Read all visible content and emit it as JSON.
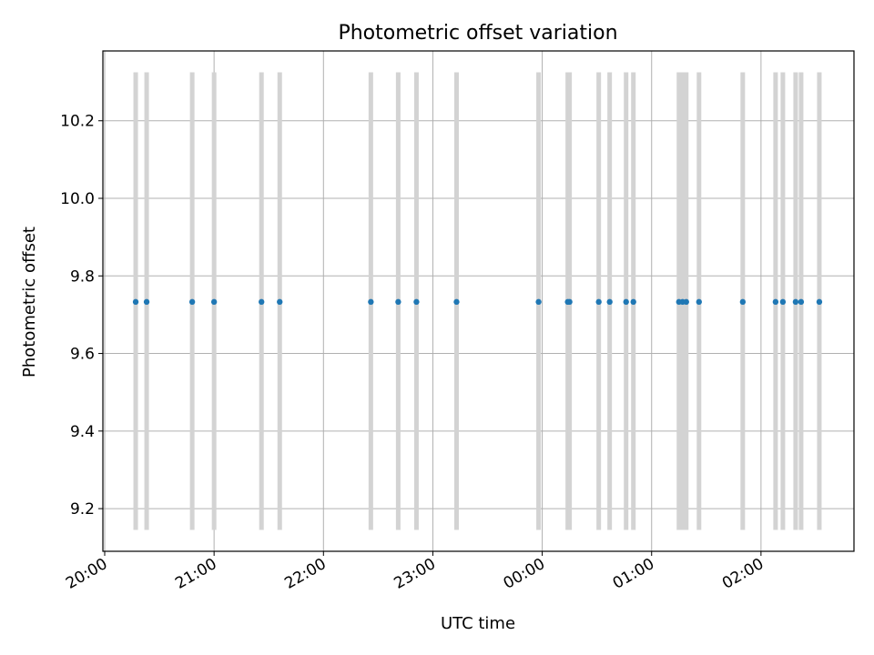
{
  "chart_data": {
    "type": "scatter",
    "title": "Photometric offset variation",
    "xlabel": "UTC time",
    "ylabel": "Photometric offset",
    "x_tick_labels": [
      "20:00",
      "21:00",
      "22:00",
      "23:00",
      "00:00",
      "01:00",
      "02:00"
    ],
    "y_tick_labels": [
      "9.2",
      "9.4",
      "9.6",
      "9.8",
      "10.0",
      "10.2"
    ],
    "y_ticks": [
      9.2,
      9.4,
      9.6,
      9.8,
      10.0,
      10.2
    ],
    "ylim": [
      9.09,
      10.38
    ],
    "xlim": [
      "19:59",
      "02:51"
    ],
    "x_axis_type": "time",
    "grid": true,
    "series": [
      {
        "color": "#1f77b4",
        "marker": "dot",
        "x": [
          "20:17",
          "20:23",
          "20:48",
          "21:00",
          "21:26",
          "21:36",
          "22:26",
          "22:41",
          "22:51",
          "23:13",
          "23:58",
          "00:14",
          "00:15",
          "00:31",
          "00:37",
          "00:46",
          "00:50",
          "01:15",
          "01:17",
          "01:19",
          "01:26",
          "01:50",
          "02:08",
          "02:12",
          "02:19",
          "02:22",
          "02:32"
        ],
        "y": [
          9.733,
          9.733,
          9.733,
          9.733,
          9.733,
          9.733,
          9.733,
          9.733,
          9.733,
          9.733,
          9.733,
          9.733,
          9.733,
          9.733,
          9.733,
          9.733,
          9.733,
          9.733,
          9.733,
          9.733,
          9.733,
          9.733,
          9.733,
          9.733,
          9.733,
          9.733,
          9.733
        ]
      }
    ],
    "vertical_bands": {
      "color": "#d3d3d3",
      "y_range": [
        9.145,
        10.325
      ],
      "x": [
        "20:17",
        "20:23",
        "20:48",
        "21:00",
        "21:26",
        "21:36",
        "22:26",
        "22:41",
        "22:51",
        "23:13",
        "23:58",
        "00:14",
        "00:15",
        "00:31",
        "00:37",
        "00:46",
        "00:50",
        "01:15",
        "01:17",
        "01:19",
        "01:26",
        "01:50",
        "02:08",
        "02:12",
        "02:19",
        "02:22",
        "02:32"
      ]
    }
  }
}
